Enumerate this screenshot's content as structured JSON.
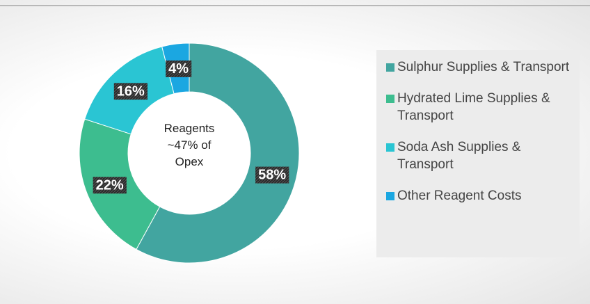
{
  "chart_data": {
    "type": "donut",
    "center_label": [
      "Reagents",
      "~47% of",
      "Opex"
    ],
    "categories": [
      "Sulphur Supplies & Transport",
      "Hydrated Lime Supplies & Transport",
      "Soda Ash Supplies & Transport",
      "Other Reagent Costs"
    ],
    "values": [
      58,
      22,
      16,
      4
    ],
    "value_labels": [
      "58%",
      "22%",
      "16%",
      "4%"
    ],
    "colors": [
      "#42a5a0",
      "#3dbd8f",
      "#2ac5d3",
      "#1ba7e1"
    ],
    "legend": "right"
  }
}
